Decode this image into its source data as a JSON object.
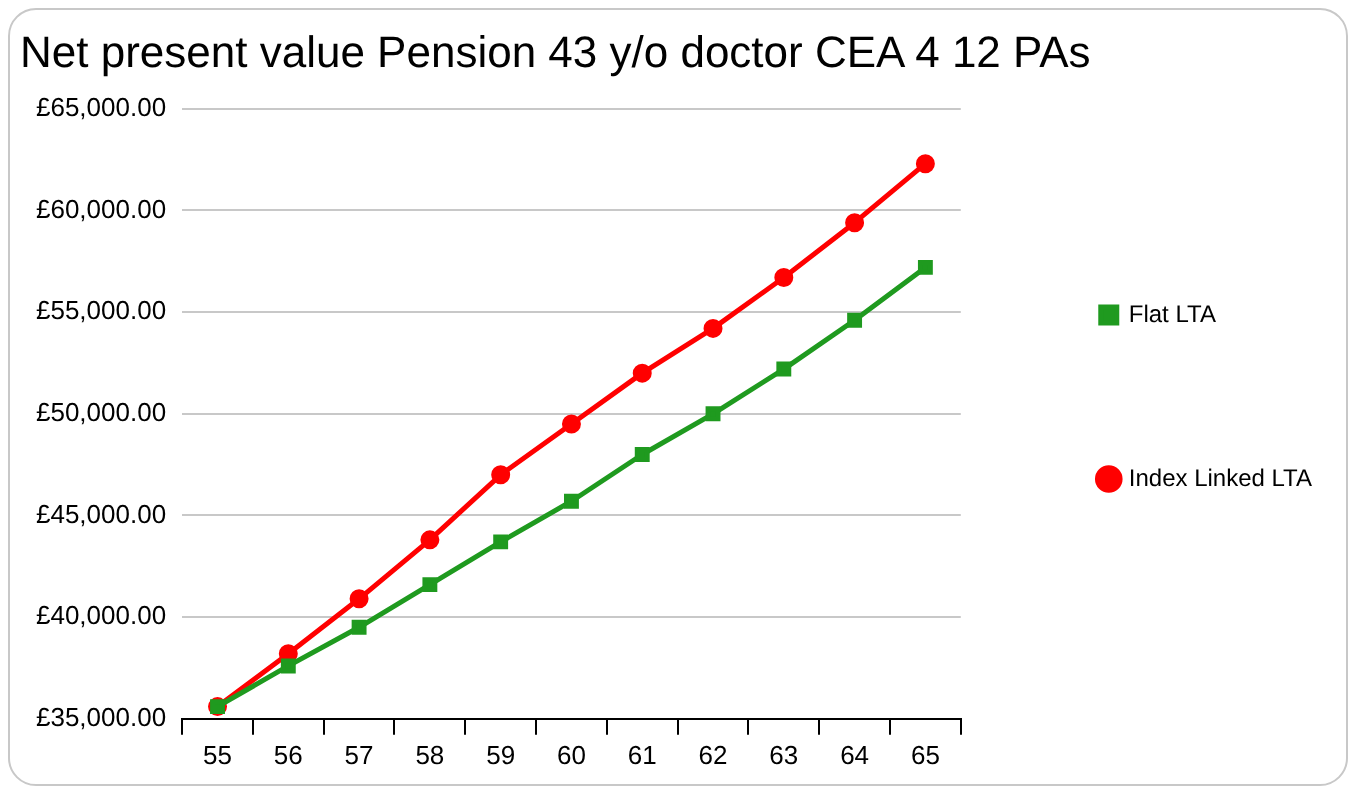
{
  "chart_data": {
    "type": "line",
    "title": "Net present value Pension 43 y/o doctor CEA 4 12 PAs",
    "categories": [
      "55",
      "56",
      "57",
      "58",
      "59",
      "60",
      "61",
      "62",
      "63",
      "64",
      "65"
    ],
    "series": [
      {
        "name": "Index Linked LTA",
        "color": "#ff0000",
        "marker": "circle",
        "values": [
          35600,
          38200,
          40900,
          43800,
          47000,
          49500,
          52000,
          54200,
          56700,
          59400,
          62300
        ]
      },
      {
        "name": "Flat LTA",
        "color": "#1f9a1f",
        "marker": "square",
        "values": [
          35600,
          37600,
          39500,
          41600,
          43700,
          45700,
          48000,
          50000,
          52200,
          54600,
          57200
        ]
      }
    ],
    "ylim": [
      35000,
      65000
    ],
    "yticks": [
      {
        "value": 35000,
        "label": "£35,000.00"
      },
      {
        "value": 40000,
        "label": "£40,000.00"
      },
      {
        "value": 45000,
        "label": "£45,000.00"
      },
      {
        "value": 50000,
        "label": "£50,000.00"
      },
      {
        "value": 55000,
        "label": "£55,000.00"
      },
      {
        "value": 60000,
        "label": "£60,000.00"
      },
      {
        "value": 65000,
        "label": "£65,000.00"
      }
    ],
    "grid": "y",
    "legend": "right",
    "line_style": "solid"
  }
}
